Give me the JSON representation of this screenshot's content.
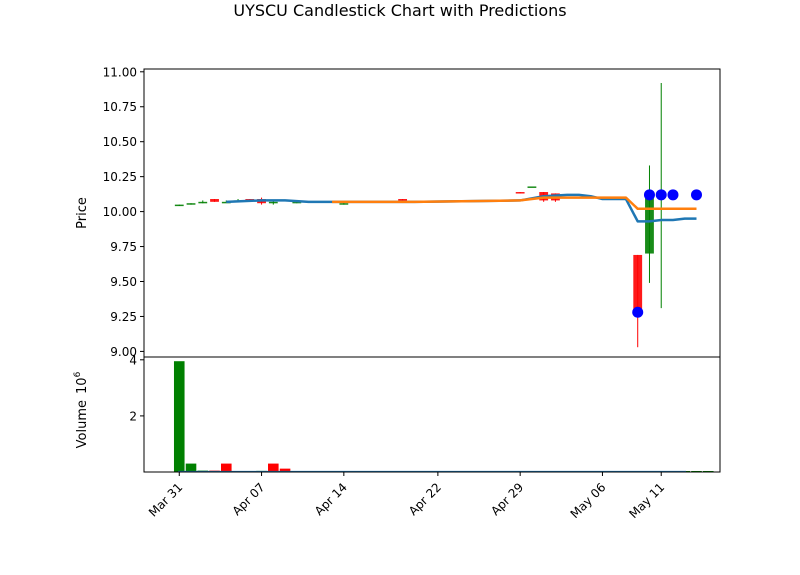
{
  "chart_data": {
    "type": "candlestick",
    "title": "UYSCU Candlestick Chart with Predictions",
    "colors": {
      "up": "#008000",
      "down": "#ff0000",
      "line1": "#1f77b4",
      "line2": "#ff7f0e",
      "prediction": "#0000ff",
      "volume_base": "#1f77b4"
    },
    "price_panel": {
      "ylabel": "Price",
      "ylim": [
        8.96,
        11.02
      ],
      "yticks": [
        "9.00",
        "9.25",
        "9.50",
        "9.75",
        "10.00",
        "10.25",
        "10.50",
        "10.75",
        "11.00"
      ],
      "ytick_values": [
        9.0,
        9.25,
        9.5,
        9.75,
        10.0,
        10.25,
        10.5,
        10.75,
        11.0
      ]
    },
    "volume_panel": {
      "ylabel": "Volume",
      "ylabel_unit": "10",
      "ylabel_exp": "6",
      "ylim": [
        0,
        4.1
      ],
      "yticks": [
        "2",
        "4"
      ],
      "ytick_values": [
        2,
        4
      ]
    },
    "x_axis": {
      "xlim": [
        "2025-03-28",
        "2025-05-16"
      ],
      "ticks": [
        {
          "label": "Mar 31",
          "date": "2025-03-31"
        },
        {
          "label": "Apr 07",
          "date": "2025-04-07"
        },
        {
          "label": "Apr 14",
          "date": "2025-04-14"
        },
        {
          "label": "Apr 22",
          "date": "2025-04-22"
        },
        {
          "label": "Apr 29",
          "date": "2025-04-29"
        },
        {
          "label": "May 06",
          "date": "2025-05-06"
        },
        {
          "label": "May 11",
          "date": "2025-05-11"
        }
      ]
    },
    "candles": [
      {
        "date": "2025-03-31",
        "open": 10.04,
        "high": 10.05,
        "low": 10.04,
        "close": 10.05
      },
      {
        "date": "2025-04-01",
        "open": 10.05,
        "high": 10.06,
        "low": 10.05,
        "close": 10.06
      },
      {
        "date": "2025-04-02",
        "open": 10.06,
        "high": 10.08,
        "low": 10.06,
        "close": 10.07
      },
      {
        "date": "2025-04-03",
        "open": 10.09,
        "high": 10.09,
        "low": 10.07,
        "close": 10.07
      },
      {
        "date": "2025-04-04",
        "open": 10.07,
        "high": 10.08,
        "low": 10.07,
        "close": 10.07
      },
      {
        "date": "2025-04-05",
        "open": 10.07,
        "high": 10.09,
        "low": 10.07,
        "close": 10.08
      },
      {
        "date": "2025-04-06",
        "open": 10.09,
        "high": 10.09,
        "low": 10.08,
        "close": 10.08
      },
      {
        "date": "2025-04-07",
        "open": 10.09,
        "high": 10.1,
        "low": 10.05,
        "close": 10.06
      },
      {
        "date": "2025-04-08",
        "open": 10.06,
        "high": 10.08,
        "low": 10.05,
        "close": 10.07
      },
      {
        "date": "2025-04-10",
        "open": 10.06,
        "high": 10.07,
        "low": 10.06,
        "close": 10.07
      },
      {
        "date": "2025-04-14",
        "open": 10.06,
        "high": 10.07,
        "low": 10.05,
        "close": 10.06
      },
      {
        "date": "2025-04-19",
        "open": 10.09,
        "high": 10.09,
        "low": 10.08,
        "close": 10.08
      },
      {
        "date": "2025-04-29",
        "open": 10.14,
        "high": 10.14,
        "low": 10.13,
        "close": 10.13
      },
      {
        "date": "2025-04-30",
        "open": 10.18,
        "high": 10.18,
        "low": 10.18,
        "close": 10.18
      },
      {
        "date": "2025-05-01",
        "open": 10.14,
        "high": 10.14,
        "low": 10.07,
        "close": 10.08
      },
      {
        "date": "2025-05-02",
        "open": 10.13,
        "high": 10.13,
        "low": 10.07,
        "close": 10.08
      },
      {
        "date": "2025-05-09",
        "open": 9.69,
        "high": 9.69,
        "low": 9.03,
        "close": 9.27
      },
      {
        "date": "2025-05-10",
        "open": 9.7,
        "high": 10.33,
        "low": 9.49,
        "close": 10.11
      },
      {
        "date": "2025-05-11",
        "open": 10.11,
        "high": 10.92,
        "low": 9.31,
        "close": 10.11
      }
    ],
    "volume": [
      {
        "date": "2025-03-31",
        "value": 3.95,
        "direction": "up"
      },
      {
        "date": "2025-04-01",
        "value": 0.3,
        "direction": "up"
      },
      {
        "date": "2025-04-02",
        "value": 0.05,
        "direction": "up"
      },
      {
        "date": "2025-04-03",
        "value": 0.05,
        "direction": "down"
      },
      {
        "date": "2025-04-04",
        "value": 0.3,
        "direction": "down"
      },
      {
        "date": "2025-04-06",
        "value": 0.02,
        "direction": "up"
      },
      {
        "date": "2025-04-07",
        "value": 0.04,
        "direction": "up"
      },
      {
        "date": "2025-04-08",
        "value": 0.3,
        "direction": "down"
      },
      {
        "date": "2025-04-09",
        "value": 0.12,
        "direction": "down"
      },
      {
        "date": "2025-04-10",
        "value": 0.02,
        "direction": "down"
      },
      {
        "date": "2025-04-11",
        "value": 0.02,
        "direction": "up"
      },
      {
        "date": "2025-04-12",
        "value": 0.02,
        "direction": "up"
      },
      {
        "date": "2025-04-13",
        "value": 0.01,
        "direction": "up"
      },
      {
        "date": "2025-04-14",
        "value": 0.01,
        "direction": "up"
      },
      {
        "date": "2025-04-15",
        "value": 0.01,
        "direction": "up"
      },
      {
        "date": "2025-04-16",
        "value": 0.01,
        "direction": "up"
      },
      {
        "date": "2025-04-17",
        "value": 0.01,
        "direction": "up"
      },
      {
        "date": "2025-04-18",
        "value": 0.01,
        "direction": "up"
      },
      {
        "date": "2025-04-19",
        "value": 0.01,
        "direction": "up"
      },
      {
        "date": "2025-04-20",
        "value": 0.01,
        "direction": "up"
      },
      {
        "date": "2025-04-21",
        "value": 0.01,
        "direction": "up"
      },
      {
        "date": "2025-04-22",
        "value": 0.01,
        "direction": "up"
      },
      {
        "date": "2025-04-23",
        "value": 0.01,
        "direction": "up"
      },
      {
        "date": "2025-04-24",
        "value": 0.01,
        "direction": "up"
      },
      {
        "date": "2025-04-25",
        "value": 0.01,
        "direction": "up"
      },
      {
        "date": "2025-04-26",
        "value": 0.01,
        "direction": "up"
      },
      {
        "date": "2025-04-27",
        "value": 0.01,
        "direction": "up"
      },
      {
        "date": "2025-04-28",
        "value": 0.01,
        "direction": "up"
      },
      {
        "date": "2025-04-29",
        "value": 0.01,
        "direction": "up"
      },
      {
        "date": "2025-04-30",
        "value": 0.01,
        "direction": "up"
      },
      {
        "date": "2025-05-01",
        "value": 0.01,
        "direction": "up"
      },
      {
        "date": "2025-05-02",
        "value": 0.01,
        "direction": "up"
      },
      {
        "date": "2025-05-03",
        "value": 0.01,
        "direction": "up"
      },
      {
        "date": "2025-05-04",
        "value": 0.01,
        "direction": "up"
      },
      {
        "date": "2025-05-05",
        "value": 0.01,
        "direction": "up"
      },
      {
        "date": "2025-05-06",
        "value": 0.01,
        "direction": "up"
      },
      {
        "date": "2025-05-07",
        "value": 0.01,
        "direction": "up"
      },
      {
        "date": "2025-05-08",
        "value": 0.01,
        "direction": "up"
      },
      {
        "date": "2025-05-09",
        "value": 0.01,
        "direction": "up"
      },
      {
        "date": "2025-05-10",
        "value": 0.01,
        "direction": "up"
      },
      {
        "date": "2025-05-11",
        "value": 0.01,
        "direction": "up"
      },
      {
        "date": "2025-05-12",
        "value": 0.01,
        "direction": "up"
      },
      {
        "date": "2025-05-13",
        "value": 0.01,
        "direction": "up"
      },
      {
        "date": "2025-05-14",
        "value": 0.01,
        "direction": "up"
      },
      {
        "date": "2025-05-15",
        "value": 0.01,
        "direction": "up"
      }
    ],
    "series": [
      {
        "color": "#1f77b4",
        "points": [
          [
            "2025-04-04",
            10.07
          ],
          [
            "2025-04-07",
            10.08
          ],
          [
            "2025-04-09",
            10.08
          ],
          [
            "2025-04-11",
            10.07
          ],
          [
            "2025-04-13",
            10.07
          ],
          [
            "2025-04-20",
            10.07
          ],
          [
            "2025-04-29",
            10.08
          ],
          [
            "2025-05-01",
            10.11
          ],
          [
            "2025-05-03",
            10.12
          ],
          [
            "2025-05-04",
            10.12
          ],
          [
            "2025-05-05",
            10.11
          ],
          [
            "2025-05-06",
            10.09
          ],
          [
            "2025-05-07",
            10.09
          ],
          [
            "2025-05-08",
            10.09
          ],
          [
            "2025-05-09",
            9.93
          ],
          [
            "2025-05-10",
            9.93
          ],
          [
            "2025-05-11",
            9.94
          ],
          [
            "2025-05-12",
            9.94
          ],
          [
            "2025-05-13",
            9.95
          ],
          [
            "2025-05-14",
            9.95
          ]
        ]
      },
      {
        "color": "#ff7f0e",
        "points": [
          [
            "2025-04-13",
            10.07
          ],
          [
            "2025-04-20",
            10.07
          ],
          [
            "2025-04-29",
            10.08
          ],
          [
            "2025-05-01",
            10.1
          ],
          [
            "2025-05-03",
            10.1
          ],
          [
            "2025-05-05",
            10.1
          ],
          [
            "2025-05-08",
            10.1
          ],
          [
            "2025-05-09",
            10.02
          ],
          [
            "2025-05-10",
            10.02
          ],
          [
            "2025-05-11",
            10.02
          ],
          [
            "2025-05-12",
            10.02
          ],
          [
            "2025-05-13",
            10.02
          ],
          [
            "2025-05-14",
            10.02
          ]
        ]
      }
    ],
    "predictions": [
      {
        "date": "2025-05-09",
        "value": 9.28
      },
      {
        "date": "2025-05-10",
        "value": 10.12
      },
      {
        "date": "2025-05-11",
        "value": 10.12
      },
      {
        "date": "2025-05-12",
        "value": 10.12
      },
      {
        "date": "2025-05-14",
        "value": 10.12
      }
    ]
  }
}
